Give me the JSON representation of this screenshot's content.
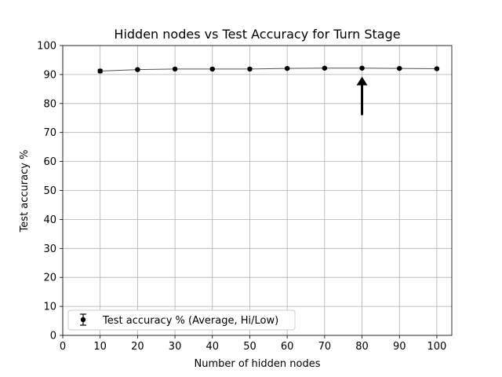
{
  "chart_data": {
    "type": "line",
    "title": "Hidden nodes vs Test Accuracy for Turn Stage",
    "xlabel": "Number of hidden nodes",
    "ylabel": "Test accuracy %",
    "xlim": [
      0,
      104
    ],
    "ylim": [
      0,
      100
    ],
    "xticks": [
      0,
      10,
      20,
      30,
      40,
      50,
      60,
      70,
      80,
      90,
      100
    ],
    "yticks": [
      0,
      10,
      20,
      30,
      40,
      50,
      60,
      70,
      80,
      90,
      100
    ],
    "grid": true,
    "legend_position": "lower-left",
    "series": [
      {
        "name": "Test accuracy % (Average, Hi/Low)",
        "color": "#000000",
        "line_color": "#555555",
        "x": [
          10,
          20,
          30,
          40,
          50,
          60,
          70,
          80,
          90,
          100
        ],
        "y": [
          91.2,
          91.7,
          91.9,
          91.9,
          91.9,
          92.1,
          92.2,
          92.2,
          92.1,
          92.0
        ],
        "err_low": [
          0.6,
          0.4,
          0.3,
          0.3,
          0.3,
          0.3,
          0.3,
          0.3,
          0.3,
          0.3
        ],
        "err_high": [
          0.6,
          0.4,
          0.3,
          0.3,
          0.3,
          0.3,
          0.3,
          0.3,
          0.3,
          0.3
        ]
      }
    ],
    "annotation": {
      "type": "arrow",
      "x": 80,
      "y_start": 76,
      "y_end": 89,
      "color": "#000000"
    }
  }
}
